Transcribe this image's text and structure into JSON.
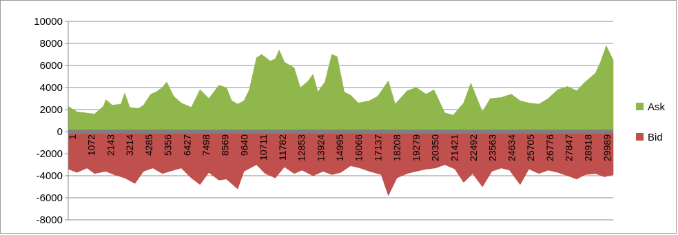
{
  "chart_data": {
    "type": "area",
    "title": "",
    "xlabel": "",
    "ylabel": "",
    "ylim": [
      -8000,
      10000
    ],
    "yticks": [
      10000,
      8000,
      6000,
      4000,
      2000,
      0,
      -2000,
      -4000,
      -6000,
      -8000
    ],
    "x_tick_labels": [
      "1",
      "1072",
      "2143",
      "3214",
      "4285",
      "5356",
      "6427",
      "7498",
      "8569",
      "9640",
      "10711",
      "11782",
      "12853",
      "13924",
      "14995",
      "16066",
      "17137",
      "18208",
      "19279",
      "20350",
      "21421",
      "22492",
      "23563",
      "24634",
      "25705",
      "26776",
      "27847",
      "28918",
      "29989"
    ],
    "x_range": [
      1,
      31000
    ],
    "grid": "horizontal",
    "legend_position": "right",
    "series": [
      {
        "name": "Ask",
        "color": "#8fb74b",
        "x": [
          1,
          500,
          1000,
          1500,
          2000,
          2143,
          2500,
          3000,
          3214,
          3500,
          4000,
          4285,
          4700,
          5000,
          5356,
          5600,
          6000,
          6427,
          7000,
          7498,
          8000,
          8569,
          9000,
          9300,
          9640,
          10000,
          10300,
          10711,
          11000,
          11500,
          11782,
          12000,
          12300,
          12853,
          13200,
          13600,
          13924,
          14200,
          14600,
          14995,
          15300,
          15700,
          16066,
          16500,
          17137,
          17600,
          18208,
          18600,
          19279,
          19800,
          20350,
          20800,
          21421,
          21900,
          22492,
          22900,
          23563,
          24000,
          24634,
          25200,
          25705,
          26200,
          26776,
          27300,
          27847,
          28400,
          28918,
          29400,
          29989,
          30300,
          30600,
          31000
        ],
        "values": [
          2300,
          1800,
          1700,
          1600,
          2300,
          2900,
          2400,
          2500,
          3500,
          2200,
          2100,
          2400,
          3400,
          3600,
          4000,
          4500,
          3200,
          2600,
          2200,
          3800,
          3000,
          4200,
          4000,
          2800,
          2500,
          2800,
          3800,
          6700,
          7000,
          6400,
          6600,
          7400,
          6300,
          5800,
          4000,
          4500,
          5200,
          3600,
          4500,
          7000,
          6800,
          3600,
          3300,
          2600,
          2800,
          3200,
          4600,
          2500,
          3700,
          4000,
          3400,
          3800,
          1700,
          1500,
          2600,
          4400,
          1800,
          3000,
          3100,
          3400,
          2800,
          2600,
          2500,
          3000,
          3800,
          4100,
          3700,
          4500,
          5300,
          6400,
          7800,
          6500
        ]
      },
      {
        "name": "Bid",
        "color": "#c0504d",
        "x": [
          1,
          500,
          1072,
          1500,
          2143,
          2600,
          3214,
          3800,
          4285,
          4800,
          5356,
          6000,
          6427,
          7000,
          7498,
          8000,
          8569,
          9000,
          9640,
          10000,
          10711,
          11200,
          11782,
          12300,
          12853,
          13300,
          13924,
          14500,
          14995,
          15500,
          16066,
          16600,
          17137,
          17800,
          18208,
          18700,
          19279,
          19800,
          20350,
          20900,
          21421,
          22000,
          22492,
          23000,
          23563,
          24100,
          24634,
          25100,
          25705,
          26200,
          26776,
          27300,
          27847,
          28400,
          28918,
          29400,
          29989,
          30500,
          31000
        ],
        "values": [
          -3400,
          -3700,
          -3300,
          -3800,
          -3600,
          -3900,
          -4200,
          -4700,
          -3600,
          -3300,
          -3800,
          -3500,
          -3300,
          -4200,
          -4800,
          -3700,
          -4400,
          -4300,
          -5200,
          -3600,
          -3000,
          -3800,
          -4200,
          -3200,
          -3800,
          -3500,
          -4000,
          -3600,
          -3900,
          -3700,
          -3100,
          -3300,
          -3600,
          -3900,
          -5800,
          -4200,
          -3800,
          -3600,
          -3400,
          -3300,
          -3000,
          -3400,
          -4600,
          -3800,
          -5000,
          -3600,
          -3300,
          -3500,
          -4800,
          -3400,
          -3800,
          -3500,
          -3700,
          -4000,
          -4300,
          -3900,
          -3800,
          -4100,
          -3900
        ]
      }
    ]
  }
}
